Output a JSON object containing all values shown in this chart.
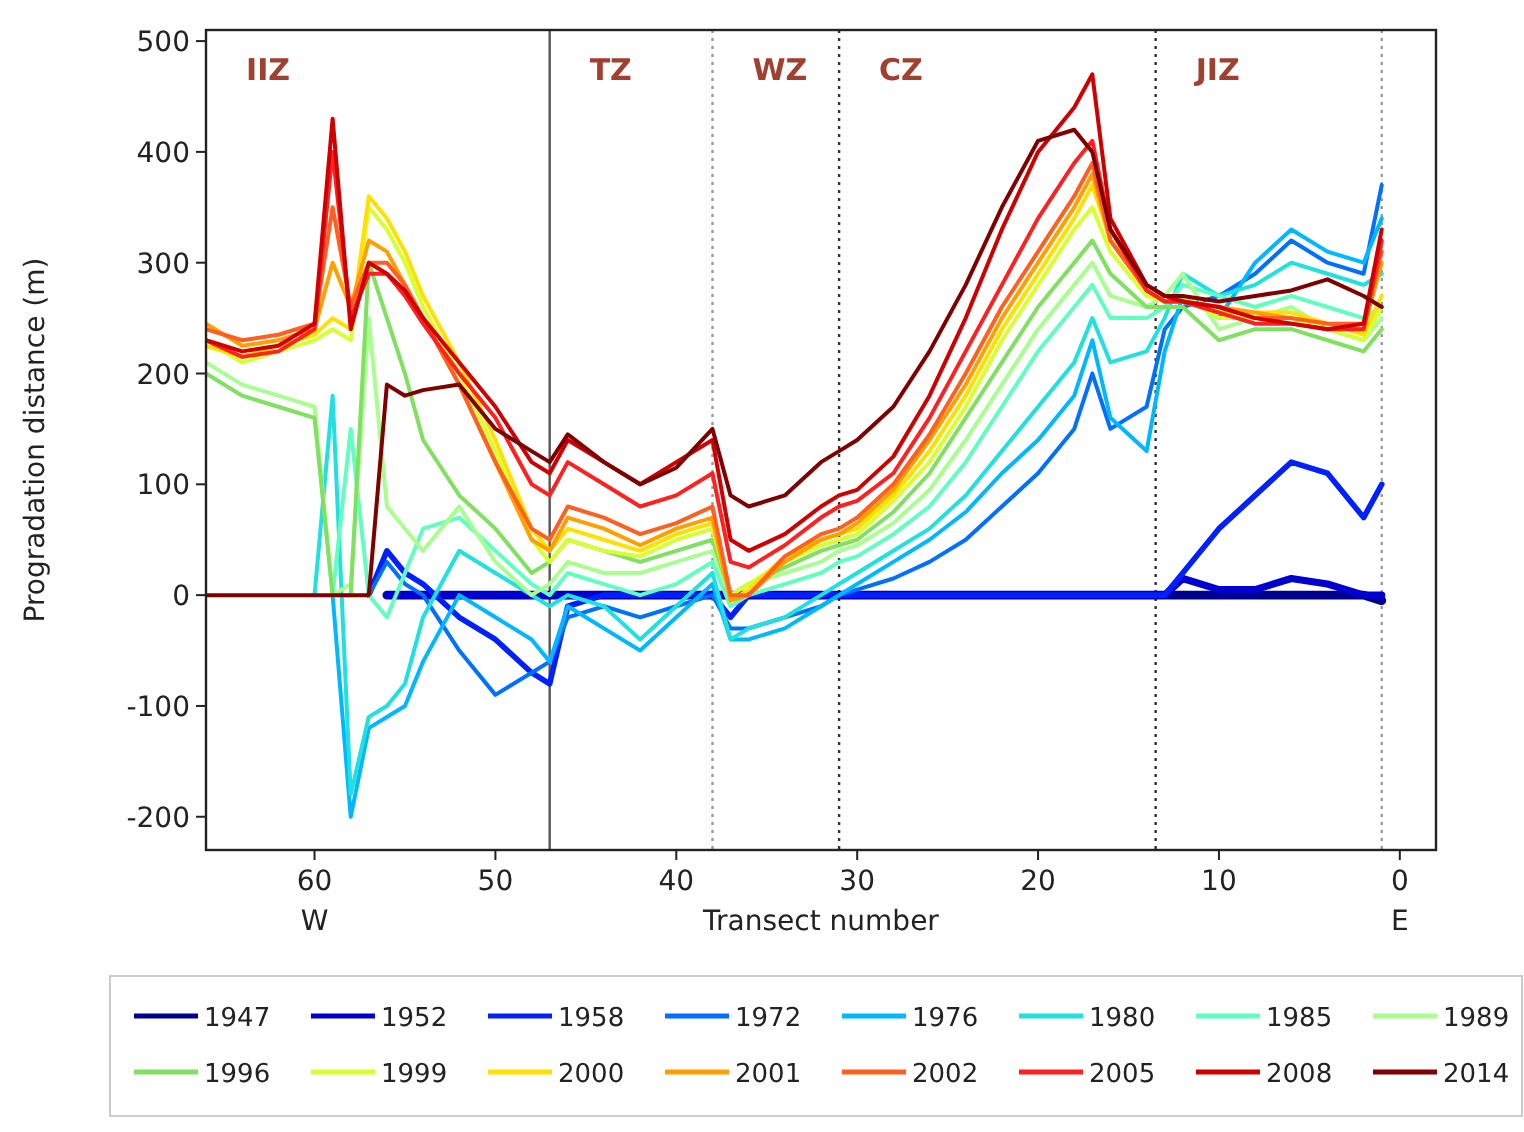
{
  "chart_data": {
    "type": "line",
    "xlabel": "Transect number",
    "ylabel": "Progradation distance (m)",
    "x": [
      66,
      64,
      62,
      60,
      59,
      58,
      57,
      56,
      55,
      54,
      52,
      50,
      48,
      47,
      46,
      44,
      42,
      40,
      38,
      37,
      36,
      34,
      32,
      31,
      30,
      28,
      26,
      24,
      22,
      20,
      18,
      17,
      16,
      14,
      13,
      12,
      10,
      8,
      6,
      4,
      2,
      1
    ],
    "xlim": [
      66,
      -2
    ],
    "xticks": [
      60,
      50,
      40,
      30,
      20,
      10,
      0
    ],
    "ylim": [
      -230,
      510
    ],
    "yticks": [
      -200,
      -100,
      0,
      100,
      200,
      300,
      400,
      500
    ],
    "grid": false,
    "legend": "bottom",
    "line_style": "solid",
    "marker": "none",
    "series": [
      {
        "name": "1947",
        "color": "#00008f",
        "values": [
          null,
          null,
          null,
          null,
          null,
          null,
          null,
          0,
          0,
          0,
          0,
          0,
          0,
          0,
          0,
          0,
          0,
          0,
          0,
          0,
          0,
          0,
          0,
          0,
          0,
          0,
          0,
          0,
          0,
          0,
          0,
          0,
          0,
          0,
          0,
          0,
          0,
          0,
          0,
          0,
          0,
          -5
        ]
      },
      {
        "name": "1952",
        "color": "#0000d0",
        "values": [
          null,
          null,
          null,
          null,
          null,
          null,
          null,
          0,
          0,
          0,
          0,
          0,
          0,
          0,
          0,
          0,
          0,
          0,
          0,
          0,
          0,
          0,
          0,
          0,
          0,
          0,
          0,
          0,
          0,
          0,
          0,
          0,
          0,
          0,
          0,
          15,
          5,
          5,
          15,
          10,
          0,
          0
        ]
      },
      {
        "name": "1958",
        "color": "#0020ff",
        "values": [
          null,
          null,
          null,
          null,
          null,
          null,
          0,
          40,
          20,
          10,
          -20,
          -40,
          -70,
          -80,
          -10,
          0,
          0,
          0,
          0,
          -20,
          0,
          0,
          0,
          0,
          0,
          0,
          0,
          0,
          0,
          0,
          0,
          0,
          0,
          0,
          0,
          20,
          60,
          90,
          120,
          110,
          70,
          100
        ]
      },
      {
        "name": "1972",
        "color": "#0070ff",
        "values": [
          null,
          null,
          null,
          null,
          null,
          null,
          0,
          30,
          10,
          0,
          -50,
          -90,
          -70,
          -60,
          -20,
          -10,
          -20,
          -10,
          0,
          -30,
          -30,
          -20,
          -10,
          0,
          5,
          15,
          30,
          50,
          80,
          110,
          150,
          200,
          150,
          170,
          240,
          260,
          270,
          290,
          320,
          300,
          290,
          370
        ]
      },
      {
        "name": "1976",
        "color": "#00b8ff",
        "values": [
          null,
          null,
          null,
          null,
          0,
          -200,
          -120,
          -110,
          -100,
          -60,
          0,
          -20,
          -40,
          -60,
          -10,
          -30,
          -50,
          -20,
          10,
          -40,
          -40,
          -30,
          -10,
          0,
          10,
          30,
          50,
          75,
          110,
          140,
          180,
          230,
          160,
          130,
          220,
          270,
          250,
          300,
          330,
          310,
          300,
          340
        ]
      },
      {
        "name": "1980",
        "color": "#20e0e0",
        "values": [
          null,
          null,
          null,
          0,
          180,
          -180,
          -110,
          -100,
          -80,
          -20,
          40,
          20,
          0,
          -10,
          0,
          -10,
          -40,
          -10,
          20,
          -40,
          -30,
          -20,
          0,
          10,
          20,
          40,
          60,
          90,
          130,
          170,
          210,
          250,
          210,
          220,
          250,
          290,
          270,
          280,
          300,
          290,
          280,
          290
        ]
      },
      {
        "name": "1985",
        "color": "#60ffc0",
        "values": [
          null,
          null,
          null,
          null,
          0,
          150,
          0,
          -20,
          20,
          60,
          70,
          40,
          10,
          0,
          20,
          10,
          0,
          10,
          30,
          -10,
          0,
          10,
          20,
          30,
          35,
          55,
          80,
          120,
          170,
          220,
          260,
          280,
          250,
          250,
          260,
          280,
          270,
          260,
          270,
          260,
          250,
          260
        ]
      },
      {
        "name": "1989",
        "color": "#a8ff90",
        "values": [
          210,
          190,
          180,
          170,
          0,
          10,
          250,
          80,
          60,
          40,
          80,
          30,
          0,
          10,
          30,
          20,
          20,
          30,
          40,
          0,
          10,
          20,
          30,
          40,
          45,
          65,
          95,
          140,
          190,
          240,
          280,
          300,
          270,
          260,
          270,
          290,
          240,
          250,
          260,
          240,
          230,
          250
        ]
      },
      {
        "name": "1996",
        "color": "#80e060",
        "values": [
          200,
          180,
          170,
          160,
          0,
          0,
          300,
          250,
          200,
          140,
          90,
          60,
          20,
          30,
          50,
          40,
          30,
          40,
          50,
          0,
          10,
          25,
          40,
          45,
          50,
          75,
          110,
          160,
          210,
          260,
          300,
          320,
          290,
          260,
          260,
          260,
          230,
          240,
          240,
          230,
          220,
          240
        ]
      },
      {
        "name": "1999",
        "color": "#d8ff30",
        "values": [
          230,
          210,
          220,
          230,
          240,
          230,
          350,
          330,
          300,
          260,
          200,
          130,
          50,
          30,
          50,
          40,
          35,
          50,
          60,
          0,
          10,
          30,
          45,
          50,
          55,
          85,
          120,
          170,
          230,
          280,
          330,
          350,
          310,
          270,
          265,
          270,
          250,
          250,
          250,
          240,
          230,
          260
        ]
      },
      {
        "name": "2000",
        "color": "#ffe000",
        "values": [
          225,
          215,
          225,
          235,
          250,
          240,
          360,
          340,
          310,
          270,
          210,
          140,
          60,
          40,
          60,
          50,
          40,
          55,
          65,
          -5,
          5,
          35,
          50,
          55,
          60,
          90,
          130,
          180,
          240,
          290,
          340,
          370,
          320,
          275,
          265,
          265,
          255,
          255,
          255,
          245,
          235,
          270
        ]
      },
      {
        "name": "2001",
        "color": "#ffa000",
        "values": [
          245,
          225,
          230,
          240,
          300,
          260,
          320,
          310,
          280,
          250,
          190,
          120,
          50,
          40,
          70,
          60,
          45,
          60,
          70,
          -5,
          0,
          30,
          50,
          55,
          65,
          95,
          140,
          190,
          250,
          300,
          350,
          380,
          320,
          275,
          265,
          265,
          260,
          255,
          250,
          245,
          240,
          300
        ]
      },
      {
        "name": "2002",
        "color": "#ff6020",
        "values": [
          240,
          230,
          235,
          245,
          350,
          260,
          300,
          300,
          280,
          250,
          190,
          120,
          60,
          50,
          80,
          70,
          55,
          65,
          80,
          0,
          0,
          35,
          55,
          60,
          70,
          100,
          145,
          200,
          260,
          310,
          360,
          390,
          320,
          275,
          265,
          265,
          260,
          250,
          250,
          245,
          245,
          310
        ]
      },
      {
        "name": "2005",
        "color": "#ff2020",
        "values": [
          230,
          215,
          220,
          240,
          400,
          250,
          290,
          290,
          270,
          245,
          200,
          160,
          100,
          90,
          120,
          100,
          80,
          90,
          110,
          30,
          25,
          45,
          70,
          80,
          85,
          110,
          160,
          220,
          280,
          340,
          390,
          410,
          330,
          275,
          265,
          265,
          255,
          245,
          245,
          240,
          240,
          320
        ]
      },
      {
        "name": "2008",
        "color": "#d00000",
        "values": [
          230,
          220,
          225,
          245,
          430,
          240,
          300,
          290,
          275,
          250,
          210,
          170,
          120,
          110,
          140,
          120,
          100,
          120,
          140,
          50,
          40,
          55,
          80,
          90,
          95,
          125,
          180,
          250,
          330,
          400,
          440,
          470,
          340,
          280,
          270,
          265,
          260,
          250,
          245,
          240,
          245,
          330
        ]
      },
      {
        "name": "2014",
        "color": "#800000",
        "values": [
          0,
          0,
          0,
          0,
          0,
          0,
          0,
          190,
          180,
          185,
          190,
          150,
          130,
          120,
          145,
          120,
          100,
          115,
          150,
          90,
          80,
          90,
          120,
          130,
          140,
          170,
          220,
          280,
          350,
          410,
          420,
          400,
          330,
          280,
          270,
          270,
          265,
          270,
          275,
          285,
          270,
          260
        ]
      }
    ],
    "ref_lines": [
      {
        "axis": "x",
        "value": 47,
        "color": "#555555",
        "line_style": "solid"
      },
      {
        "axis": "x",
        "value": 38,
        "color": "#999999",
        "line_style": "dotted"
      },
      {
        "axis": "x",
        "value": 31,
        "color": "#333333",
        "line_style": "dotted"
      },
      {
        "axis": "x",
        "value": 13.5,
        "color": "#333333",
        "line_style": "dotted"
      },
      {
        "axis": "x",
        "value": 1,
        "color": "#999999",
        "line_style": "dotted"
      }
    ],
    "annotations": [
      "IIZ",
      "TZ",
      "WZ",
      "CZ",
      "JIZ",
      "W",
      "E"
    ]
  }
}
